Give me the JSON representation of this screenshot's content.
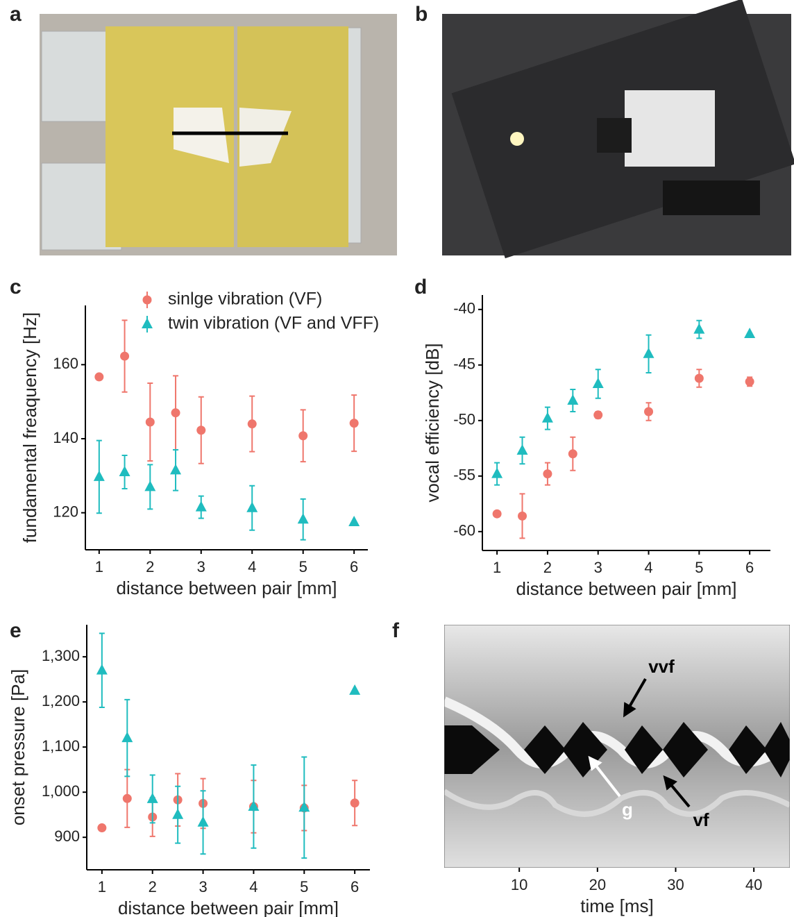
{
  "photos": [
    {
      "panel": "a"
    },
    {
      "panel": "b"
    }
  ],
  "chart_data": [
    {
      "type": "errorpoint",
      "panel": "c",
      "ylabel": "fundamental freaquency [Hz]",
      "xlabel": "distance between pair [mm]",
      "x": [
        1,
        1.5,
        2,
        2.5,
        3,
        4,
        5,
        6
      ],
      "xlim": [
        0.73,
        6.27
      ],
      "xticks": [
        1,
        2,
        3,
        4,
        5,
        6
      ],
      "ylim": [
        110,
        176
      ],
      "yticks": [
        120,
        140,
        160
      ],
      "series": [
        {
          "name": "sinlge vibration (VF)",
          "color": "#ef766c",
          "marker": "circle",
          "values": [
            156.7,
            162.3,
            144.5,
            147,
            142.3,
            144,
            140.8,
            144.2
          ],
          "errors": [
            null,
            9.7,
            10.5,
            10,
            9,
            7.5,
            7,
            7.6
          ]
        },
        {
          "name": "twin vibration (VF and VFF)",
          "color": "#1fbcbf",
          "marker": "triangle",
          "values": [
            129.7,
            131,
            127,
            131.5,
            121.5,
            121.3,
            118.2,
            117.5
          ],
          "errors": [
            9.8,
            4.5,
            6,
            5.5,
            3,
            6,
            5.5,
            null
          ]
        }
      ]
    },
    {
      "type": "errorpoint",
      "panel": "d",
      "ylabel": "vocal efficiency [dB]",
      "xlabel": "distance between pair [mm]",
      "x": [
        1,
        1.5,
        2,
        2.5,
        3,
        4,
        5,
        6
      ],
      "xlim": [
        0.71,
        6.41
      ],
      "xticks": [
        1,
        2,
        3,
        4,
        5,
        6
      ],
      "ylim": [
        -61.7,
        -38.7
      ],
      "yticks": [
        -60,
        -55,
        -50,
        -45,
        -40
      ],
      "series": [
        {
          "color": "#ef766c",
          "marker": "circle",
          "values": [
            -58.4,
            -58.6,
            -54.8,
            -53,
            -49.5,
            -49.2,
            -46.2,
            -46.5
          ],
          "errors": [
            null,
            2,
            1,
            1.5,
            0.3,
            0.8,
            0.8,
            0.4
          ]
        },
        {
          "color": "#1fbcbf",
          "marker": "triangle",
          "values": [
            -54.8,
            -52.7,
            -49.8,
            -48.2,
            -46.7,
            -44,
            -41.8,
            -42.2
          ],
          "errors": [
            1,
            1.2,
            1,
            1,
            1.3,
            1.7,
            0.8,
            null
          ]
        }
      ]
    },
    {
      "type": "errorpoint",
      "panel": "e",
      "ylabel": "onset pressure [Pa]",
      "xlabel": "distance between pair [mm]",
      "x": [
        1,
        1.5,
        2,
        2.5,
        3,
        4,
        5,
        6
      ],
      "xlim": [
        0.7,
        6.3
      ],
      "xticks": [
        1,
        2,
        3,
        4,
        5,
        6
      ],
      "ylim": [
        828,
        1371
      ],
      "yticks": [
        {
          "value": 900,
          "label": "900"
        },
        {
          "value": 1000,
          "label": "1,000"
        },
        {
          "value": 1100,
          "label": "1,100"
        },
        {
          "value": 1200,
          "label": "1,200"
        },
        {
          "value": 1300,
          "label": "1,300"
        }
      ],
      "series": [
        {
          "color": "#ef766c",
          "marker": "circle",
          "values": [
            921,
            986,
            945,
            983,
            975,
            968,
            965,
            976
          ],
          "errors": [
            null,
            64,
            43,
            58,
            55,
            58,
            50,
            50
          ]
        },
        {
          "color": "#1fbcbf",
          "marker": "triangle",
          "values": [
            1270,
            1120,
            985,
            950,
            933,
            968,
            966,
            1225
          ],
          "errors": [
            82,
            85,
            53,
            63,
            70,
            92,
            112,
            null
          ]
        }
      ]
    },
    {
      "type": "image",
      "panel": "f",
      "xlabel": "time [ms]",
      "xlim": [
        0.4,
        44.6
      ],
      "xticks": [
        10,
        20,
        30,
        40
      ],
      "annotations": [
        "vvf",
        "g",
        "vf"
      ]
    }
  ]
}
